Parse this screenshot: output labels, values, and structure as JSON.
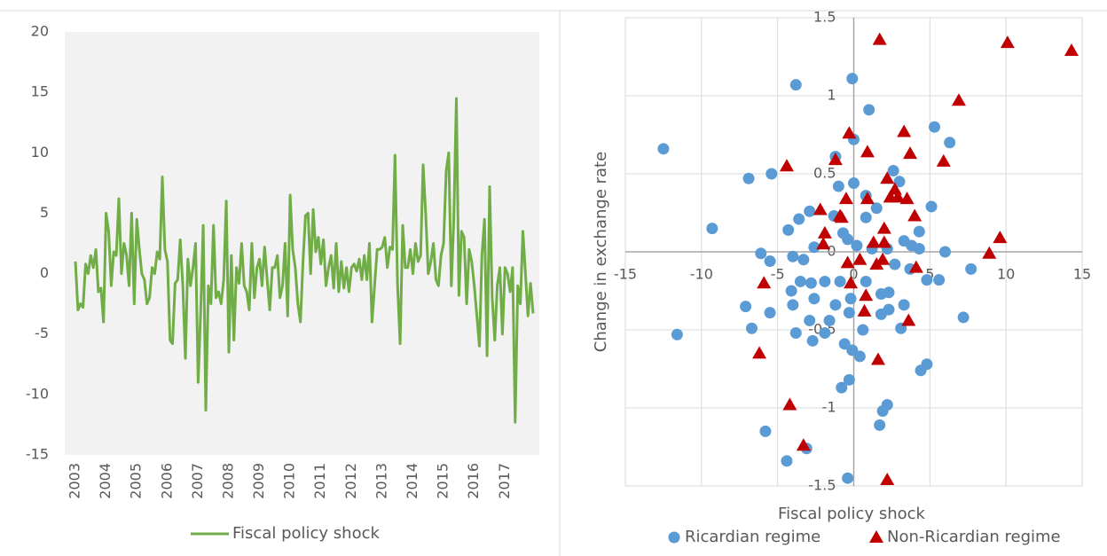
{
  "chart_data": [
    {
      "type": "line",
      "categories": [
        "2003",
        null,
        null,
        null,
        null,
        null,
        null,
        null,
        null,
        null,
        null,
        null,
        "2004",
        null,
        null,
        null,
        null,
        null,
        null,
        null,
        null,
        null,
        null,
        null,
        "2005",
        null,
        null,
        null,
        null,
        null,
        null,
        null,
        null,
        null,
        null,
        null,
        "2006",
        null,
        null,
        null,
        null,
        null,
        null,
        null,
        null,
        null,
        null,
        null,
        "2007",
        null,
        null,
        null,
        null,
        null,
        null,
        null,
        null,
        null,
        null,
        null,
        "2008",
        null,
        null,
        null,
        null,
        null,
        null,
        null,
        null,
        null,
        null,
        null,
        "2009",
        null,
        null,
        null,
        null,
        null,
        null,
        null,
        null,
        null,
        null,
        null,
        "2010",
        null,
        null,
        null,
        null,
        null,
        null,
        null,
        null,
        null,
        null,
        null,
        "2011",
        null,
        null,
        null,
        null,
        null,
        null,
        null,
        null,
        null,
        null,
        null,
        "2012",
        null,
        null,
        null,
        null,
        null,
        null,
        null,
        null,
        null,
        null,
        null,
        "2013",
        null,
        null,
        null,
        null,
        null,
        null,
        null,
        null,
        null,
        null,
        null,
        "2014",
        null,
        null,
        null,
        null,
        null,
        null,
        null,
        null,
        null,
        null,
        null,
        "2015",
        null,
        null,
        null,
        null,
        null,
        null,
        null,
        null,
        null,
        null,
        null,
        "2016",
        null,
        null,
        null,
        null,
        null,
        null,
        null,
        null,
        null,
        null,
        null,
        "2017",
        null,
        null,
        null,
        null,
        null,
        null,
        null,
        null,
        null,
        null,
        null
      ],
      "series": [
        {
          "name": "Fiscal policy shock",
          "color": "#70ad47",
          "values": [
            1,
            -3,
            -2.5,
            -2.8,
            0.8,
            0,
            1.5,
            0.5,
            2,
            -1.5,
            -1.2,
            -4,
            5,
            3.5,
            -1,
            1.8,
            1.5,
            6.2,
            0,
            2.5,
            1.5,
            -1,
            5,
            -2.5,
            4.5,
            2,
            0,
            -0.5,
            -2.5,
            -2,
            0.5,
            0,
            1.8,
            1.2,
            8,
            2,
            1,
            -5.5,
            -5.8,
            -0.8,
            -0.5,
            2.8,
            -1,
            -7,
            1.2,
            -1,
            0.5,
            2.5,
            -9,
            -3,
            4,
            -11.3,
            -1,
            -2.5,
            4,
            -2,
            -1.5,
            -2.5,
            -0.5,
            6,
            -6.5,
            1.5,
            -5.5,
            0.5,
            -0.8,
            2.5,
            -1,
            -1.5,
            -3,
            2.5,
            -2,
            0.5,
            1.2,
            -1,
            2.2,
            -0.5,
            -3,
            0.5,
            0.5,
            1.5,
            -2,
            -1,
            2.5,
            -3.5,
            6.5,
            2,
            0.5,
            -2.5,
            -4,
            1,
            4.8,
            5,
            0,
            5.3,
            1.8,
            3,
            0.8,
            2.8,
            -1,
            0.5,
            1.5,
            -1.2,
            2.5,
            -1.5,
            1,
            -1.2,
            0.5,
            -1.5,
            0.5,
            0.8,
            0.2,
            1.2,
            -0.5,
            1.5,
            -0.5,
            2.5,
            -4,
            -1,
            2,
            2,
            2.2,
            3,
            0.5,
            2.2,
            2,
            9.8,
            -1,
            -5.8,
            4,
            0.5,
            0.5,
            2,
            0,
            2.5,
            1,
            1.5,
            9,
            5,
            0,
            1,
            2.5,
            -0.5,
            -1,
            1.5,
            2.5,
            8.5,
            10,
            -1,
            4.5,
            14.5,
            -1.8,
            3.5,
            3,
            -2.5,
            2,
            1,
            -1,
            -3.5,
            -6,
            1.5,
            4.5,
            -6.8,
            7.2,
            -2,
            -5.5,
            -1,
            0.5,
            -5,
            0.5,
            0,
            -1.5,
            0.5,
            -12.3,
            -1,
            -2.5,
            3.5,
            0,
            -3.5,
            -0.8,
            -3.3
          ]
        }
      ],
      "ylim": [
        -15,
        20
      ],
      "yticks": [
        -15,
        -10,
        -5,
        0,
        5,
        10,
        15,
        20
      ],
      "grid": false,
      "legend": "bottom"
    },
    {
      "type": "scatter",
      "xlabel": "Fiscal policy shock",
      "ylabel": "Change in exchange rate",
      "xlim": [
        -15,
        15
      ],
      "xticks": [
        -15,
        -10,
        -5,
        0,
        5,
        10,
        15
      ],
      "ylim": [
        -1.5,
        1.5
      ],
      "yticks": [
        -1.5,
        -1,
        -0.5,
        0,
        0.5,
        1,
        1.5
      ],
      "grid": true,
      "legend": "bottom",
      "series": [
        {
          "name": "Ricardian regime",
          "color": "#5b9bd5",
          "marker": "circle",
          "x": [
            -12.5,
            -3.8,
            -0.1,
            1.0,
            0,
            5.3,
            6.3,
            -6.9,
            -5.4,
            -1.2,
            -1.0,
            0,
            0.8,
            2.6,
            3.0,
            5.1,
            -9.3,
            -3.6,
            -2.9,
            -1.3,
            0.8,
            1.5,
            4.3,
            3.8,
            4.3,
            6.0,
            -4.3,
            -6.1,
            -5.5,
            -4.0,
            -3.3,
            -2.6,
            -0.7,
            -0.4,
            0.2,
            1.2,
            2.2,
            3.3,
            2.7,
            3.7,
            4.8,
            5.6,
            7.7,
            -4.1,
            -3.5,
            -2.8,
            -1.9,
            -0.9,
            -0.2,
            0.8,
            1.8,
            2.3,
            3.3,
            -7.1,
            -5.5,
            -4.0,
            -2.6,
            -1.2,
            -0.3,
            1.8,
            2.3,
            3.1,
            -1.9,
            -2.9,
            -1.6,
            0.6,
            7.2,
            -6.7,
            -3.8,
            -11.6,
            -2.7,
            -0.6,
            -0.1,
            0.4,
            4.8,
            4.4,
            -0.3,
            -0.8,
            2.2,
            1.9,
            1.7,
            -5.8,
            -3.1,
            -4.4,
            -0.4
          ],
          "values": [
            0.66,
            1.07,
            1.11,
            0.91,
            0.72,
            0.8,
            0.7,
            0.47,
            0.5,
            0.61,
            0.42,
            0.44,
            0.36,
            0.52,
            0.45,
            0.29,
            0.15,
            0.21,
            0.26,
            0.23,
            0.22,
            0.28,
            0.13,
            0.04,
            0.02,
            0,
            0.14,
            -0.01,
            -0.06,
            -0.03,
            -0.05,
            0.03,
            0.12,
            0.08,
            0.04,
            0.02,
            0.02,
            0.07,
            -0.08,
            -0.11,
            -0.18,
            -0.18,
            -0.11,
            -0.25,
            -0.19,
            -0.2,
            -0.19,
            -0.19,
            -0.3,
            -0.19,
            -0.27,
            -0.26,
            -0.34,
            -0.35,
            -0.39,
            -0.34,
            -0.3,
            -0.34,
            -0.39,
            -0.4,
            -0.37,
            -0.49,
            -0.52,
            -0.44,
            -0.44,
            -0.5,
            -0.42,
            -0.49,
            -0.52,
            -0.53,
            -0.57,
            -0.59,
            -0.63,
            -0.67,
            -0.72,
            -0.76,
            -0.82,
            -0.87,
            -0.98,
            -1.02,
            -1.11,
            -1.15,
            -1.26,
            -1.34,
            -1.45
          ]
        },
        {
          "name": "Non-Ricardian regime",
          "color": "#c00000",
          "marker": "triangle",
          "x": [
            1.7,
            10.1,
            14.3,
            6.9,
            3.3,
            -0.3,
            0.9,
            -4.4,
            -1.2,
            3.7,
            5.9,
            2.2,
            2.7,
            2.4,
            2.9,
            3.5,
            0.9,
            -0.5,
            -2.2,
            -0.9,
            -0.8,
            4.0,
            -1.9,
            2.0,
            1.3,
            2.0,
            9.6,
            -2.0,
            8.9,
            0.4,
            -0.4,
            1.9,
            1.5,
            4.1,
            -0.2,
            -5.9,
            0.8,
            0.7,
            3.6,
            -6.2,
            1.6,
            -4.2,
            -3.3,
            2.2
          ],
          "values": [
            1.36,
            1.34,
            1.29,
            0.97,
            0.77,
            0.76,
            0.64,
            0.55,
            0.59,
            0.63,
            0.58,
            0.47,
            0.4,
            0.35,
            0.35,
            0.34,
            0.34,
            0.34,
            0.27,
            0.23,
            0.22,
            0.23,
            0.12,
            0.15,
            0.06,
            0.06,
            0.09,
            0.05,
            -0.01,
            -0.05,
            -0.07,
            -0.05,
            -0.08,
            -0.1,
            -0.2,
            -0.2,
            -0.28,
            -0.38,
            -0.44,
            -0.65,
            -0.69,
            -0.98,
            -1.24,
            -1.46
          ]
        }
      ]
    }
  ]
}
